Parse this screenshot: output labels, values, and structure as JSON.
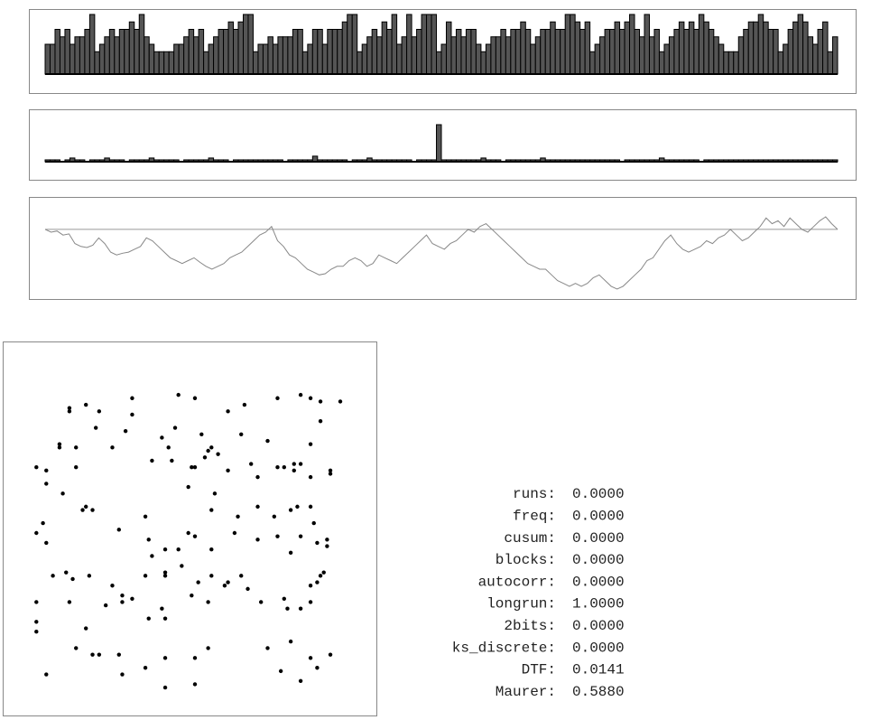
{
  "chart_data": [
    {
      "type": "bar",
      "color": "#555555",
      "values": [
        4,
        4,
        6,
        5,
        6,
        4,
        5,
        5,
        6,
        8,
        3,
        4,
        5,
        6,
        5,
        6,
        6,
        7,
        6,
        8,
        5,
        4,
        3,
        3,
        3,
        3,
        4,
        4,
        5,
        6,
        5,
        6,
        3,
        4,
        5,
        6,
        6,
        7,
        6,
        7,
        8,
        8,
        3,
        4,
        4,
        5,
        4,
        5,
        5,
        5,
        6,
        6,
        3,
        4,
        6,
        6,
        4,
        6,
        6,
        6,
        7,
        8,
        8,
        3,
        4,
        5,
        6,
        5,
        7,
        6,
        8,
        4,
        5,
        8,
        5,
        6,
        8,
        8,
        8,
        3,
        4,
        7,
        5,
        6,
        5,
        6,
        6,
        4,
        3,
        4,
        5,
        5,
        6,
        5,
        6,
        6,
        7,
        6,
        4,
        5,
        6,
        6,
        7,
        6,
        6,
        8,
        8,
        7,
        6,
        7,
        3,
        4,
        5,
        6,
        6,
        7,
        6,
        7,
        8,
        6,
        5,
        8,
        5,
        6,
        3,
        4,
        5,
        6,
        7,
        6,
        7,
        6,
        8,
        7,
        6,
        5,
        4,
        3,
        3,
        3,
        5,
        6,
        7,
        7,
        8,
        7,
        6,
        6,
        3,
        4,
        6,
        7,
        8,
        7,
        5,
        4,
        6,
        7,
        3,
        5
      ]
    },
    {
      "type": "bar",
      "color": "#555555",
      "values": [
        1,
        1,
        1,
        0,
        1,
        2,
        1,
        1,
        0,
        1,
        1,
        1,
        2,
        1,
        1,
        1,
        0,
        1,
        1,
        1,
        1,
        2,
        1,
        1,
        1,
        1,
        1,
        0,
        1,
        1,
        1,
        1,
        1,
        2,
        1,
        1,
        1,
        0,
        1,
        1,
        1,
        1,
        1,
        1,
        1,
        1,
        1,
        1,
        0,
        1,
        1,
        1,
        1,
        1,
        3,
        1,
        1,
        1,
        1,
        1,
        1,
        0,
        1,
        1,
        1,
        2,
        1,
        1,
        1,
        1,
        1,
        1,
        1,
        1,
        0,
        1,
        1,
        1,
        1,
        20,
        1,
        1,
        1,
        1,
        1,
        1,
        1,
        1,
        2,
        1,
        1,
        1,
        0,
        1,
        1,
        1,
        1,
        1,
        1,
        1,
        2,
        1,
        1,
        1,
        1,
        1,
        1,
        1,
        1,
        1,
        1,
        1,
        1,
        1,
        1,
        1,
        0,
        1,
        1,
        1,
        1,
        1,
        1,
        1,
        2,
        1,
        1,
        1,
        1,
        1,
        1,
        1,
        0,
        1,
        1,
        1,
        1,
        1,
        1,
        1,
        1,
        1,
        1,
        1,
        1,
        1,
        1,
        1,
        1,
        1,
        1,
        1,
        1,
        1,
        1,
        1,
        1,
        1,
        1,
        1
      ]
    },
    {
      "type": "line",
      "color": "#888888",
      "reference": 0,
      "values": [
        0,
        -0.5,
        -0.3,
        -1,
        -0.8,
        -2.5,
        -3,
        -3.2,
        -2.8,
        -1.5,
        -2.5,
        -4,
        -4.5,
        -4.2,
        -4,
        -3.5,
        -3,
        -1.5,
        -2,
        -3,
        -4,
        -5,
        -5.5,
        -6,
        -5.5,
        -5,
        -5.8,
        -6.5,
        -7,
        -6.5,
        -6,
        -5,
        -4.5,
        -4,
        -3,
        -2,
        -1,
        -0.5,
        0.5,
        -2,
        -3,
        -4.5,
        -5,
        -6,
        -7,
        -7.5,
        -8,
        -7.8,
        -7,
        -6.5,
        -6.5,
        -5.5,
        -5,
        -5.5,
        -6.5,
        -6,
        -4.5,
        -5,
        -5.5,
        -6,
        -5,
        -4,
        -3,
        -2,
        -1,
        -2.5,
        -3,
        -3.5,
        -2.5,
        -2,
        -1,
        0,
        -0.5,
        0.5,
        1,
        0,
        -1,
        -2,
        -3,
        -4,
        -5,
        -6,
        -6.5,
        -7,
        -7,
        -8,
        -9,
        -9.5,
        -10,
        -9.5,
        -10,
        -9.5,
        -8.5,
        -8,
        -9,
        -10,
        -10.5,
        -10,
        -9,
        -8,
        -7,
        -5.5,
        -5,
        -3.5,
        -2,
        -1,
        -2.5,
        -3.5,
        -4,
        -3.5,
        -3,
        -2,
        -2.5,
        -1.5,
        -1,
        0,
        -1,
        -2,
        -1.5,
        -0.5,
        0.5,
        2,
        1,
        1.5,
        0.5,
        2,
        1,
        0,
        -0.5,
        0.5,
        1.5,
        2.2,
        1,
        0
      ]
    },
    {
      "type": "scatter",
      "color": "#000000",
      "x": [
        15,
        15,
        20,
        24,
        34,
        34,
        48,
        53,
        63,
        68,
        78,
        85,
        88,
        91,
        97,
        12,
        17,
        23,
        28,
        32,
        43,
        45,
        47,
        55,
        58,
        60,
        67,
        75,
        83,
        88,
        91,
        12,
        17,
        40,
        46,
        52,
        53,
        56,
        57,
        63,
        70,
        72,
        78,
        80,
        83,
        85,
        88,
        94,
        94,
        5,
        8,
        8,
        13,
        19,
        20,
        22,
        38,
        51,
        58,
        59,
        66,
        72,
        77,
        82,
        84,
        88,
        89,
        5,
        7,
        8,
        30,
        39,
        40,
        44,
        48,
        51,
        53,
        58,
        65,
        72,
        78,
        82,
        85,
        90,
        93,
        93,
        10,
        14,
        16,
        21,
        28,
        38,
        44,
        44,
        49,
        54,
        58,
        63,
        67,
        81,
        88,
        90,
        91,
        5,
        5,
        15,
        20,
        26,
        31,
        31,
        34,
        39,
        43,
        44,
        52,
        57,
        62,
        69,
        73,
        80,
        85,
        88,
        92,
        5,
        17,
        22,
        24,
        30,
        44,
        53,
        57,
        75,
        82,
        88,
        94,
        8,
        31,
        38,
        44,
        79,
        85,
        90,
        53
      ],
      "y": [
        12,
        13,
        11,
        13,
        9,
        14,
        8,
        9,
        13,
        11,
        9,
        8,
        9,
        16,
        10,
        24,
        24,
        18,
        24,
        19,
        21,
        24,
        18,
        20,
        24,
        26,
        20,
        22,
        29,
        23,
        10,
        23,
        30,
        28,
        28,
        30,
        30,
        27,
        25,
        31,
        29,
        33,
        30,
        30,
        31,
        29,
        33,
        32,
        31,
        30,
        31,
        35,
        38,
        43,
        42,
        43,
        45,
        36,
        43,
        38,
        45,
        42,
        45,
        43,
        42,
        42,
        47,
        50,
        47,
        53,
        49,
        52,
        57,
        55,
        55,
        50,
        51,
        55,
        50,
        52,
        51,
        56,
        51,
        53,
        54,
        52,
        63,
        62,
        64,
        63,
        66,
        63,
        62,
        63,
        60,
        65,
        63,
        65,
        63,
        73,
        66,
        65,
        63,
        77,
        71,
        71,
        79,
        72,
        71,
        69,
        70,
        76,
        73,
        76,
        69,
        71,
        66,
        67,
        71,
        70,
        73,
        71,
        62,
        80,
        85,
        87,
        87,
        87,
        88,
        88,
        85,
        85,
        83,
        88,
        87,
        93,
        93,
        91,
        97,
        92,
        95,
        91,
        96
      ]
    }
  ],
  "stats": [
    {
      "name": "runs:",
      "value": "0.0000"
    },
    {
      "name": "freq:",
      "value": "0.0000"
    },
    {
      "name": "cusum:",
      "value": "0.0000"
    },
    {
      "name": "blocks:",
      "value": "0.0000"
    },
    {
      "name": "autocorr:",
      "value": "0.0000"
    },
    {
      "name": "longrun:",
      "value": "1.0000"
    },
    {
      "name": "2bits:",
      "value": "0.0000"
    },
    {
      "name": "ks_discrete:",
      "value": "0.0000"
    },
    {
      "name": "DTF:",
      "value": "0.0141"
    },
    {
      "name": "Maurer:",
      "value": "0.5880"
    }
  ]
}
